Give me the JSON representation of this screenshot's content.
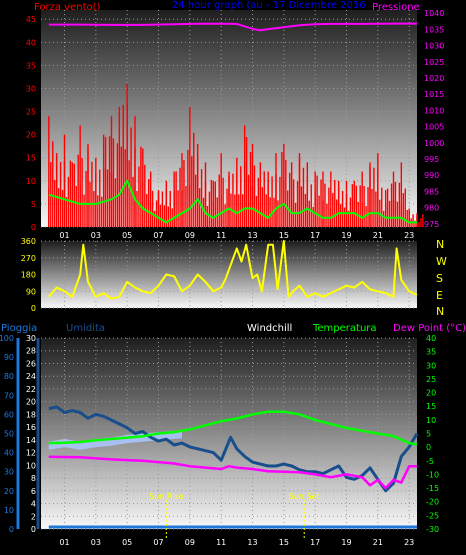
{
  "colors": {
    "background": "#000000",
    "axis": "#ffffff",
    "wind": "#ff0000",
    "wind_avg": "#00ff00",
    "pressure": "#ff00ff",
    "title": "#0000ff",
    "direction": "#ffff00",
    "rain": "#1e78dc",
    "humidity": "#184e8c",
    "windchill": "#aac8ff",
    "temperature": "#00ff00",
    "dewpoint": "#ff00ff",
    "sun_marker": "#ffff00"
  },
  "chart_data": [
    {
      "type": "line",
      "title": "24 hour graph (au - 17 Dicembre 2016",
      "left_label": "Forza vento()",
      "right_label": "Pressione",
      "x_ticks": [
        "01",
        "03",
        "05",
        "07",
        "09",
        "11",
        "13",
        "15",
        "17",
        "19",
        "21",
        "23"
      ],
      "y_left_ticks": [
        "0",
        "5",
        "10",
        "15",
        "20",
        "25",
        "30",
        "35",
        "40",
        "45"
      ],
      "y_left_range": [
        0,
        47
      ],
      "y_right_ticks": [
        "975",
        "980",
        "985",
        "990",
        "995",
        "1000",
        "1005",
        "1010",
        "1015",
        "1020",
        "1025",
        "1030",
        "1035",
        "1040"
      ],
      "y_right_range": [
        974,
        1041
      ],
      "series": [
        {
          "name": "Forza vento",
          "x": [
            0,
            0.5,
            1,
            1.5,
            2,
            2.5,
            3,
            3.5,
            4,
            4.5,
            5,
            5.5,
            6,
            6.5,
            7,
            7.5,
            8,
            8.5,
            9,
            9.5,
            10,
            10.5,
            11,
            11.5,
            12,
            12.5,
            13,
            13.5,
            14,
            14.5,
            15,
            15.5,
            16,
            16.5,
            17,
            17.5,
            18,
            18.5,
            19,
            19.5,
            20,
            20.5,
            21,
            21.5,
            22,
            22.5,
            23,
            23.5
          ],
          "values": [
            24,
            16,
            20,
            14,
            22,
            18,
            15,
            20,
            24,
            26,
            31,
            24,
            17,
            12,
            8,
            10,
            12,
            16,
            26,
            18,
            14,
            10,
            16,
            12,
            15,
            22,
            18,
            14,
            12,
            16,
            18,
            14,
            16,
            14,
            12,
            12,
            12,
            10,
            10,
            10,
            12,
            14,
            16,
            8,
            12,
            14,
            4,
            3
          ]
        },
        {
          "name": "Vento medio",
          "x": [
            0,
            1,
            2,
            3,
            4,
            4.5,
            5,
            5.5,
            6,
            6.5,
            7,
            7.5,
            8,
            8.5,
            9,
            9.5,
            10,
            10.5,
            11,
            11.5,
            12,
            12.5,
            13,
            13.5,
            14,
            14.5,
            15,
            15.5,
            16,
            16.5,
            17,
            17.5,
            18,
            18.5,
            19,
            19.5,
            20,
            20.5,
            21,
            21.5,
            22,
            22.5,
            23,
            23.5
          ],
          "values": [
            7,
            6,
            5,
            5,
            6,
            7,
            10,
            6,
            4,
            3,
            2,
            1,
            2,
            3,
            4,
            6,
            3,
            2,
            3,
            4,
            3,
            4,
            4,
            3,
            2,
            4,
            5,
            3,
            3,
            4,
            3,
            2,
            2,
            3,
            3,
            3,
            2,
            3,
            3,
            2,
            2,
            2,
            1,
            1
          ]
        },
        {
          "name": "Pressione",
          "x": [
            0,
            2,
            4,
            6,
            8,
            10,
            12,
            13,
            13.5,
            14,
            15,
            16,
            17,
            18,
            20,
            22,
            23.5
          ],
          "values": [
            1036.5,
            1036.5,
            1036.4,
            1036.4,
            1036.6,
            1036.8,
            1036.7,
            1035.2,
            1034.7,
            1035.1,
            1035.7,
            1036.3,
            1036.6,
            1036.7,
            1036.7,
            1036.8,
            1036.8
          ]
        }
      ]
    },
    {
      "type": "line",
      "title": "",
      "y_ticks": [
        "0",
        "90",
        "180",
        "270",
        "360"
      ],
      "y_range": [
        0,
        360
      ],
      "direction_labels": [
        "N",
        "W",
        "S",
        "E",
        "N"
      ],
      "series": [
        {
          "name": "Direzione vento",
          "x": [
            0,
            0.5,
            1,
            1.5,
            2,
            2.2,
            2.5,
            3,
            3.5,
            4,
            4.5,
            5,
            5.5,
            6,
            6.5,
            7,
            7.5,
            8,
            8.5,
            9,
            9.5,
            10,
            10.5,
            11,
            11.3,
            11.6,
            12,
            12.3,
            12.6,
            13,
            13.3,
            13.6,
            14,
            14.3,
            14.6,
            15,
            15.3,
            15.6,
            16,
            16.5,
            17,
            17.5,
            18,
            18.5,
            19,
            19.5,
            20,
            20.5,
            21,
            21.5,
            22,
            22.2,
            22.5,
            23,
            23.5
          ],
          "values": [
            60,
            110,
            90,
            60,
            180,
            340,
            140,
            60,
            80,
            50,
            60,
            140,
            110,
            90,
            80,
            120,
            180,
            170,
            90,
            120,
            180,
            140,
            90,
            110,
            160,
            230,
            320,
            250,
            340,
            160,
            180,
            90,
            340,
            340,
            100,
            360,
            60,
            90,
            120,
            60,
            80,
            60,
            80,
            100,
            120,
            110,
            140,
            100,
            90,
            80,
            60,
            320,
            150,
            90,
            70
          ]
        }
      ]
    },
    {
      "type": "line",
      "title": "",
      "labels": {
        "rain": "Pioggia",
        "humidity": "Umidita",
        "windchill": "Windchill",
        "temperature": "Temperatura",
        "dewpoint": "Dew Point (°C)"
      },
      "y_pct_ticks": [
        "0",
        "10",
        "20",
        "30",
        "40",
        "50",
        "60",
        "70",
        "80",
        "90",
        "100"
      ],
      "y_pct_range": [
        0,
        100
      ],
      "y_mid_ticks": [
        "0",
        "2",
        "4",
        "6",
        "8",
        "10",
        "12",
        "14",
        "16",
        "18",
        "20",
        "22",
        "24",
        "26",
        "28",
        "30"
      ],
      "y_mid_range": [
        0,
        30
      ],
      "y_temp_ticks": [
        "-30",
        "-25",
        "-20",
        "-15",
        "-10",
        "-5",
        "0",
        "5",
        "10",
        "15",
        "20",
        "25",
        "30",
        "35",
        "40"
      ],
      "y_temp_range": [
        -30,
        40
      ],
      "annotations": [
        "Sun Rise",
        "Sun Set"
      ],
      "annotation_hours": [
        7.5,
        16.3
      ],
      "series": [
        {
          "name": "Umidita",
          "x": [
            0,
            0.5,
            1,
            1.5,
            2,
            2.5,
            3,
            3.5,
            4,
            4.5,
            5,
            5.5,
            6,
            6.5,
            7,
            7.5,
            8,
            8.5,
            9,
            9.5,
            10,
            10.5,
            11,
            11.3,
            11.6,
            12,
            12.5,
            13,
            13.5,
            14,
            14.5,
            15,
            15.5,
            16,
            16.5,
            17,
            17.5,
            18,
            18.5,
            19,
            19.5,
            20,
            20.5,
            21,
            21.5,
            22,
            22.5,
            23,
            23.5
          ],
          "values": [
            63,
            64,
            61,
            62,
            61,
            58,
            60,
            59,
            57,
            55,
            53,
            50,
            51,
            48,
            46,
            47,
            44,
            45,
            43,
            42,
            41,
            40,
            36,
            42,
            48,
            42,
            38,
            35,
            34,
            33,
            33,
            34,
            33,
            31,
            30,
            30,
            29,
            31,
            33,
            27,
            26,
            28,
            32,
            26,
            20,
            24,
            38,
            43,
            50
          ]
        },
        {
          "name": "Windchill",
          "x": [
            0,
            1,
            2,
            3,
            4,
            5,
            6,
            7,
            8,
            8.5
          ],
          "values": [
            -1,
            0,
            -1,
            0,
            0.5,
            1.5,
            2,
            2.5,
            3,
            3.2
          ]
        },
        {
          "name": "Temperatura",
          "x": [
            0,
            1,
            2,
            3,
            4,
            5,
            6,
            7,
            8,
            9,
            10,
            11,
            12,
            13,
            14,
            15,
            16,
            17,
            18,
            19,
            20,
            21,
            22,
            23,
            23.5
          ],
          "values": [
            1.5,
            1.6,
            1.9,
            2.5,
            3,
            3.5,
            4,
            5,
            5.5,
            6.5,
            8,
            9.5,
            10.5,
            12,
            13,
            13,
            12,
            10,
            8.5,
            7,
            6,
            5,
            4,
            1.5,
            1.0
          ]
        },
        {
          "name": "Dew Point",
          "x": [
            0,
            2,
            4,
            6,
            8,
            9,
            10,
            11,
            11.5,
            12,
            13,
            14,
            15,
            16,
            17,
            18,
            19,
            20,
            20.5,
            21,
            21.5,
            22,
            22.5,
            23,
            23.5
          ],
          "values": [
            -3.5,
            -3.7,
            -4.5,
            -5,
            -6,
            -7,
            -7.5,
            -8,
            -7,
            -7.5,
            -8,
            -8.8,
            -9,
            -9.2,
            -10,
            -11,
            -10,
            -11,
            -14,
            -12,
            -15,
            -12,
            -13,
            -7,
            -7
          ]
        },
        {
          "name": "Pioggia",
          "x": [
            0,
            23.5
          ],
          "values": [
            0,
            0
          ]
        }
      ]
    }
  ]
}
